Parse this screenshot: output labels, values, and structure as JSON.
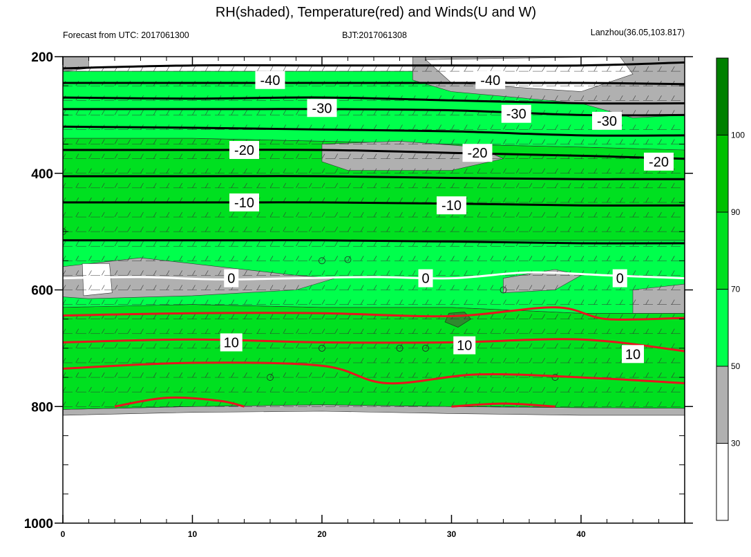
{
  "chart_data": {
    "type": "heatmap",
    "title": "RH(shaded), Temperature(red) and Winds(U and W)",
    "subtitle_left": "Forecast from UTC: 2017061300",
    "subtitle_center": "BJT:2017061308",
    "subtitle_right": "Lanzhou(36.05,103.817)",
    "xlabel": "",
    "ylabel": "",
    "xlim": [
      0,
      48
    ],
    "ylim": [
      1000,
      200
    ],
    "x_ticks": [
      "0",
      "10",
      "20",
      "30",
      "40"
    ],
    "y_ticks": [
      "200",
      "400",
      "600",
      "800",
      "1000"
    ],
    "colorbar": {
      "levels": [
        "30",
        "50",
        "70",
        "90",
        "100"
      ],
      "colors": [
        "#ffffff",
        "#b0b0b0",
        "#00ff4c",
        "#00e020",
        "#00c000",
        "#008000"
      ]
    },
    "rh_bands": [
      {
        "name": "bottom-gray",
        "color": "#b0b0b0",
        "top": [
          [
            0,
            805
          ],
          [
            10,
            800
          ],
          [
            20,
            797
          ],
          [
            30,
            800
          ],
          [
            40,
            802
          ],
          [
            48,
            803
          ]
        ],
        "bottom": [
          [
            0,
            815
          ],
          [
            10,
            810
          ],
          [
            20,
            808
          ],
          [
            30,
            812
          ],
          [
            40,
            815
          ],
          [
            48,
            815
          ]
        ]
      },
      {
        "name": "lower-green",
        "color": "#00e020",
        "top": [
          [
            0,
            630
          ],
          [
            10,
            625
          ],
          [
            20,
            630
          ],
          [
            30,
            630
          ],
          [
            40,
            640
          ],
          [
            48,
            640
          ]
        ],
        "bottom": [
          [
            0,
            805
          ],
          [
            10,
            800
          ],
          [
            20,
            797
          ],
          [
            30,
            800
          ],
          [
            40,
            802
          ],
          [
            48,
            803
          ]
        ]
      },
      {
        "name": "mid-light",
        "color": "#00ff4c",
        "top": [
          [
            0,
            515
          ],
          [
            10,
            515
          ],
          [
            20,
            515
          ],
          [
            30,
            515
          ],
          [
            40,
            515
          ],
          [
            48,
            515
          ]
        ],
        "bottom": [
          [
            0,
            630
          ],
          [
            10,
            625
          ],
          [
            20,
            630
          ],
          [
            30,
            630
          ],
          [
            40,
            640
          ],
          [
            48,
            640
          ]
        ]
      },
      {
        "name": "mid-green",
        "color": "#00e020",
        "top": [
          [
            0,
            340
          ],
          [
            10,
            340
          ],
          [
            20,
            345
          ],
          [
            30,
            350
          ],
          [
            40,
            355
          ],
          [
            48,
            360
          ]
        ],
        "bottom": [
          [
            0,
            515
          ],
          [
            10,
            515
          ],
          [
            20,
            515
          ],
          [
            30,
            515
          ],
          [
            40,
            515
          ],
          [
            48,
            515
          ]
        ]
      },
      {
        "name": "upper-light",
        "color": "#00ff4c",
        "top": [
          [
            0,
            225
          ],
          [
            10,
            225
          ],
          [
            20,
            225
          ],
          [
            30,
            225
          ],
          [
            40,
            225
          ],
          [
            48,
            225
          ]
        ],
        "bottom": [
          [
            0,
            340
          ],
          [
            10,
            340
          ],
          [
            20,
            345
          ],
          [
            30,
            350
          ],
          [
            40,
            355
          ],
          [
            48,
            360
          ]
        ]
      }
    ],
    "gray_patches": [
      [
        [
          0,
          560
        ],
        [
          6,
          545
        ],
        [
          12,
          560
        ],
        [
          18,
          575
        ],
        [
          21,
          580
        ],
        [
          18,
          600
        ],
        [
          10,
          610
        ],
        [
          2,
          615
        ],
        [
          0,
          612
        ]
      ],
      [
        [
          34,
          580
        ],
        [
          38,
          565
        ],
        [
          40,
          575
        ],
        [
          38,
          600
        ],
        [
          34,
          605
        ]
      ],
      [
        [
          44,
          600
        ],
        [
          48,
          590
        ],
        [
          48,
          640
        ],
        [
          44,
          640
        ]
      ],
      [
        [
          20,
          350
        ],
        [
          26,
          345
        ],
        [
          32,
          355
        ],
        [
          34,
          375
        ],
        [
          30,
          395
        ],
        [
          22,
          395
        ],
        [
          20,
          380
        ]
      ],
      [
        [
          27,
          200
        ],
        [
          48,
          200
        ],
        [
          48,
          300
        ],
        [
          44,
          305
        ],
        [
          40,
          280
        ],
        [
          30,
          260
        ],
        [
          27,
          240
        ]
      ],
      [
        [
          0,
          200
        ],
        [
          2,
          200
        ],
        [
          2,
          220
        ],
        [
          0,
          225
        ]
      ]
    ],
    "white_patches": [
      [
        [
          1.5,
          555
        ],
        [
          3.6,
          555
        ],
        [
          3.8,
          605
        ],
        [
          1.6,
          610
        ]
      ],
      [
        [
          28,
          205
        ],
        [
          43,
          200
        ],
        [
          44,
          230
        ],
        [
          40,
          260
        ],
        [
          30,
          245
        ]
      ]
    ],
    "dark_patches": [
      [
        [
          29.8,
          640
        ],
        [
          31,
          638
        ],
        [
          31.5,
          650
        ],
        [
          30.5,
          664
        ],
        [
          29.5,
          655
        ]
      ]
    ],
    "temperature_black": [
      {
        "label": "-40",
        "points": [
          [
            0,
            220
          ],
          [
            10,
            215
          ],
          [
            20,
            215
          ],
          [
            30,
            215
          ],
          [
            40,
            215
          ],
          [
            48,
            210
          ]
        ]
      },
      {
        "label": "",
        "points": [
          [
            0,
            245
          ],
          [
            10,
            245
          ],
          [
            20,
            245
          ],
          [
            30,
            245
          ],
          [
            40,
            245
          ],
          [
            48,
            247
          ]
        ]
      },
      {
        "label": "-30",
        "points": [
          [
            0,
            270
          ],
          [
            10,
            272
          ],
          [
            20,
            270
          ],
          [
            30,
            275
          ],
          [
            40,
            280
          ],
          [
            48,
            280
          ]
        ]
      },
      {
        "label": "",
        "points": [
          [
            0,
            290
          ],
          [
            10,
            290
          ],
          [
            20,
            290
          ],
          [
            30,
            292
          ],
          [
            40,
            300
          ],
          [
            48,
            300
          ]
        ]
      },
      {
        "label": "",
        "points": [
          [
            0,
            320
          ],
          [
            10,
            322
          ],
          [
            20,
            325
          ],
          [
            30,
            328
          ],
          [
            40,
            335
          ],
          [
            48,
            335
          ]
        ]
      },
      {
        "label": "-20",
        "points": [
          [
            0,
            360
          ],
          [
            10,
            360
          ],
          [
            20,
            360
          ],
          [
            30,
            365
          ],
          [
            40,
            370
          ],
          [
            48,
            375
          ]
        ]
      },
      {
        "label": "",
        "points": [
          [
            0,
            405
          ],
          [
            10,
            405
          ],
          [
            20,
            405
          ],
          [
            30,
            408
          ],
          [
            40,
            410
          ],
          [
            48,
            410
          ]
        ]
      },
      {
        "label": "-10",
        "points": [
          [
            0,
            450
          ],
          [
            10,
            450
          ],
          [
            20,
            450
          ],
          [
            30,
            452
          ],
          [
            40,
            455
          ],
          [
            48,
            455
          ]
        ]
      },
      {
        "label": "",
        "points": [
          [
            0,
            515
          ],
          [
            10,
            515
          ],
          [
            20,
            515
          ],
          [
            30,
            517
          ],
          [
            40,
            520
          ],
          [
            48,
            520
          ]
        ]
      }
    ],
    "temperature_zero": {
      "label": "0",
      "points": [
        [
          0,
          580
        ],
        [
          6,
          578
        ],
        [
          12,
          582
        ],
        [
          18,
          580
        ],
        [
          24,
          578
        ],
        [
          30,
          580
        ],
        [
          36,
          570
        ],
        [
          42,
          575
        ],
        [
          48,
          580
        ]
      ]
    },
    "temperature_red": [
      {
        "label": "",
        "points": [
          [
            0,
            644
          ],
          [
            10,
            640
          ],
          [
            20,
            640
          ],
          [
            30,
            645
          ],
          [
            38,
            630
          ],
          [
            42,
            650
          ],
          [
            48,
            648
          ]
        ]
      },
      {
        "label": "10",
        "points": [
          [
            0,
            690
          ],
          [
            10,
            685
          ],
          [
            20,
            690
          ],
          [
            30,
            690
          ],
          [
            40,
            685
          ],
          [
            48,
            705
          ]
        ]
      },
      {
        "label": "",
        "points": [
          [
            0,
            735
          ],
          [
            10,
            725
          ],
          [
            20,
            730
          ],
          [
            25,
            760
          ],
          [
            32,
            745
          ],
          [
            40,
            750
          ],
          [
            48,
            760
          ]
        ]
      },
      {
        "label": "",
        "points": [
          [
            4,
            800
          ],
          [
            8,
            785
          ],
          [
            12,
            790
          ],
          [
            14,
            800
          ]
        ]
      },
      {
        "label": "",
        "points": [
          [
            30,
            800
          ],
          [
            34,
            795
          ],
          [
            38,
            800
          ]
        ]
      }
    ],
    "contour_labels": [
      {
        "text": "-40",
        "x": 16,
        "y": 240
      },
      {
        "text": "-40",
        "x": 33,
        "y": 240
      },
      {
        "text": "-30",
        "x": 20,
        "y": 288
      },
      {
        "text": "-30",
        "x": 35,
        "y": 298
      },
      {
        "text": "-30",
        "x": 42,
        "y": 310
      },
      {
        "text": "-20",
        "x": 14,
        "y": 360
      },
      {
        "text": "-20",
        "x": 32,
        "y": 365
      },
      {
        "text": "-20",
        "x": 46,
        "y": 380
      },
      {
        "text": "-10",
        "x": 14,
        "y": 450
      },
      {
        "text": "-10",
        "x": 30,
        "y": 455
      },
      {
        "text": "0",
        "x": 13,
        "y": 580
      },
      {
        "text": "0",
        "x": 28,
        "y": 580
      },
      {
        "text": "0",
        "x": 43,
        "y": 580
      },
      {
        "text": "10",
        "x": 13,
        "y": 690
      },
      {
        "text": "10",
        "x": 31,
        "y": 695
      },
      {
        "text": "10",
        "x": 44,
        "y": 710
      }
    ],
    "calm_circles": [
      [
        20,
        550
      ],
      [
        22,
        548
      ],
      [
        34,
        600
      ],
      [
        20,
        700
      ],
      [
        26,
        700
      ],
      [
        28,
        700
      ],
      [
        16,
        750
      ],
      [
        38,
        750
      ],
      [
        0,
        500
      ]
    ]
  }
}
